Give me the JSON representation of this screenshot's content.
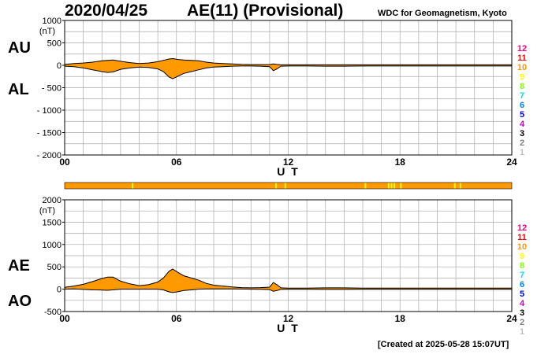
{
  "header": {
    "date": "2020/04/25",
    "title": "AE(11) (Provisional)",
    "source": "WDC for Geomagnetism, Kyoto"
  },
  "footer": {
    "created": "[Created at 2025-05-28 15:07UT]"
  },
  "unit_label": "(nT)",
  "xlabel": "U T",
  "colors": {
    "fill": "#ff9900",
    "grid": "#aaaaaa",
    "text": "#000000"
  },
  "station_scale": {
    "labels": [
      "12",
      "11",
      "10",
      "9",
      "8",
      "7",
      "6",
      "5",
      "4",
      "3",
      "2",
      "1"
    ],
    "colors": [
      "#ff0080",
      "#ff0000",
      "#ff9900",
      "#ffff00",
      "#80ff00",
      "#00e0e0",
      "#0080ff",
      "#0000ff",
      "#cc00cc",
      "#000000",
      "#808080",
      "#c0c0c0"
    ]
  },
  "chart_data": [
    {
      "type": "area",
      "name": "AU/AL",
      "panel_labels": [
        "AU",
        "AL"
      ],
      "ylabel": "(nT)",
      "xlabel": "U T",
      "xlim": [
        0,
        24
      ],
      "ylim": [
        -2000,
        1000
      ],
      "xticks": [
        "00",
        "06",
        "12",
        "18",
        "24"
      ],
      "yticks": [
        "1000",
        "500",
        "0",
        "- 500",
        "- 1000",
        "- 1500",
        "- 2000"
      ],
      "grid": true,
      "x": [
        0,
        0.5,
        1,
        1.5,
        2,
        2.3,
        2.6,
        3,
        3.5,
        4,
        4.5,
        5,
        5.3,
        5.6,
        5.8,
        6.1,
        6.4,
        6.8,
        7.2,
        7.6,
        8,
        8.5,
        9,
        9.5,
        10,
        10.5,
        11,
        11.2,
        11.4,
        11.6,
        12,
        13,
        14,
        15,
        16,
        17,
        18,
        19,
        20,
        21,
        22,
        23,
        24
      ],
      "series": [
        {
          "name": "AU",
          "values": [
            20,
            40,
            50,
            70,
            100,
            110,
            120,
            90,
            60,
            40,
            50,
            80,
            110,
            140,
            150,
            130,
            120,
            110,
            100,
            70,
            50,
            40,
            30,
            20,
            15,
            15,
            15,
            30,
            20,
            10,
            10,
            10,
            10,
            10,
            10,
            10,
            10,
            10,
            10,
            10,
            10,
            10,
            10
          ]
        },
        {
          "name": "AL",
          "values": [
            -20,
            -30,
            -60,
            -100,
            -140,
            -160,
            -150,
            -90,
            -60,
            -40,
            -50,
            -80,
            -140,
            -260,
            -300,
            -240,
            -180,
            -140,
            -100,
            -60,
            -40,
            -30,
            -20,
            -15,
            -15,
            -20,
            -30,
            -120,
            -80,
            -20,
            -15,
            -15,
            -20,
            -20,
            -15,
            -15,
            -15,
            -15,
            -15,
            -15,
            -15,
            -15,
            -15
          ]
        }
      ]
    },
    {
      "type": "area",
      "name": "AE/AO",
      "panel_labels": [
        "AE",
        "AO"
      ],
      "ylabel": "(nT)",
      "xlabel": "U T",
      "xlim": [
        0,
        24
      ],
      "ylim": [
        -500,
        2000
      ],
      "xticks": [
        "00",
        "06",
        "12",
        "18",
        "24"
      ],
      "yticks": [
        "2000",
        "1500",
        "1000",
        "500",
        "0",
        "-500"
      ],
      "grid": true,
      "x": [
        0,
        0.5,
        1,
        1.5,
        2,
        2.3,
        2.6,
        3,
        3.5,
        4,
        4.5,
        5,
        5.3,
        5.6,
        5.8,
        6.1,
        6.4,
        6.8,
        7.2,
        7.6,
        8,
        8.5,
        9,
        9.5,
        10,
        10.5,
        11,
        11.2,
        11.4,
        11.6,
        12,
        13,
        14,
        15,
        16,
        17,
        18,
        19,
        20,
        21,
        22,
        23,
        24
      ],
      "series": [
        {
          "name": "AE",
          "values": [
            40,
            70,
            110,
            170,
            240,
            270,
            270,
            180,
            120,
            80,
            100,
            160,
            250,
            400,
            450,
            370,
            300,
            250,
            200,
            130,
            90,
            70,
            50,
            35,
            30,
            35,
            45,
            150,
            100,
            30,
            25,
            25,
            30,
            30,
            25,
            25,
            25,
            25,
            25,
            25,
            25,
            25,
            25
          ]
        },
        {
          "name": "AO",
          "values": [
            0,
            5,
            -5,
            -15,
            -20,
            -25,
            -15,
            0,
            0,
            0,
            0,
            0,
            -15,
            -60,
            -75,
            -55,
            -30,
            -15,
            0,
            5,
            5,
            5,
            5,
            3,
            0,
            -3,
            -8,
            -45,
            -30,
            -5,
            -3,
            -3,
            -5,
            -5,
            -3,
            -3,
            -3,
            -3,
            -3,
            -3,
            -3,
            -3,
            -3
          ]
        }
      ]
    }
  ]
}
